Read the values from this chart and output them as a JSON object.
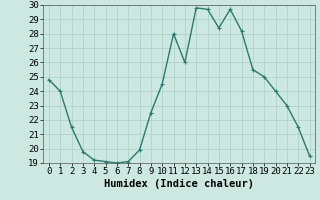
{
  "x": [
    0,
    1,
    2,
    3,
    4,
    5,
    6,
    7,
    8,
    9,
    10,
    11,
    12,
    13,
    14,
    15,
    16,
    17,
    18,
    19,
    20,
    21,
    22,
    23
  ],
  "y": [
    24.8,
    24.0,
    21.5,
    19.8,
    19.2,
    19.1,
    19.0,
    19.1,
    19.9,
    22.5,
    24.5,
    28.0,
    26.0,
    29.8,
    29.7,
    28.4,
    29.7,
    28.2,
    25.5,
    25.0,
    24.0,
    23.0,
    21.5,
    19.5
  ],
  "line_color": "#2d7a6e",
  "marker": "+",
  "marker_size": 3.5,
  "bg_color": "#cce8e0",
  "grid_color": "#afd4ca",
  "xlabel": "Humidex (Indice chaleur)",
  "xlim": [
    -0.5,
    23.5
  ],
  "ylim": [
    19,
    30
  ],
  "yticks": [
    19,
    20,
    21,
    22,
    23,
    24,
    25,
    26,
    27,
    28,
    29,
    30
  ],
  "xticks": [
    0,
    1,
    2,
    3,
    4,
    5,
    6,
    7,
    8,
    9,
    10,
    11,
    12,
    13,
    14,
    15,
    16,
    17,
    18,
    19,
    20,
    21,
    22,
    23
  ],
  "xlabel_fontsize": 7.5,
  "tick_fontsize": 6.5,
  "linewidth": 1.0
}
